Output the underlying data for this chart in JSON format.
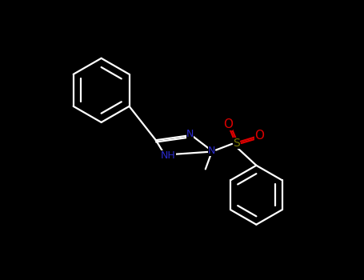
{
  "background_color": "#000000",
  "bond_color": "#ffffff",
  "bond_width": 1.6,
  "figure_width": 4.55,
  "figure_height": 3.5,
  "dpi": 100,
  "colors": {
    "N": "#2a2acc",
    "S": "#7a7a00",
    "O": "#dd0000",
    "bond": "#ffffff"
  },
  "layout": {
    "xlim": [
      0,
      455
    ],
    "ylim": [
      0,
      350
    ]
  }
}
